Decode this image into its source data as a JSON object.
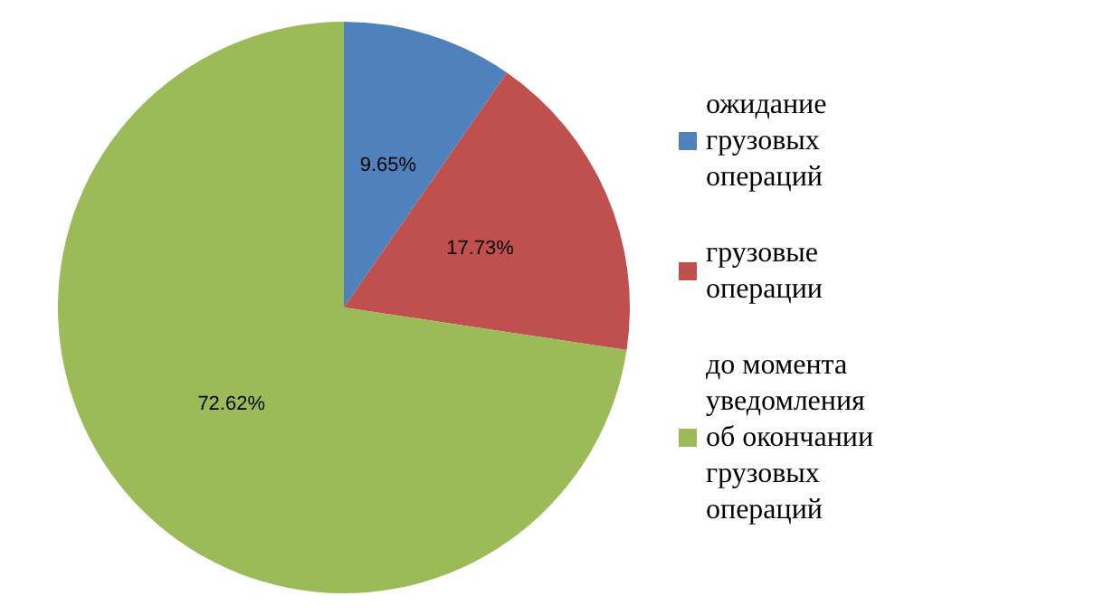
{
  "chart_data": {
    "type": "pie",
    "categories": [
      "ожидание грузовых операций",
      "грузовые операции",
      "до момента уведомления об окончании грузовых операций"
    ],
    "values": [
      9.65,
      17.73,
      72.62
    ],
    "colors": [
      "#4f81bd",
      "#c0504d",
      "#9bbb59"
    ],
    "value_labels": [
      "9.65%",
      "17.73%",
      "72.62%"
    ],
    "legend": "right"
  }
}
